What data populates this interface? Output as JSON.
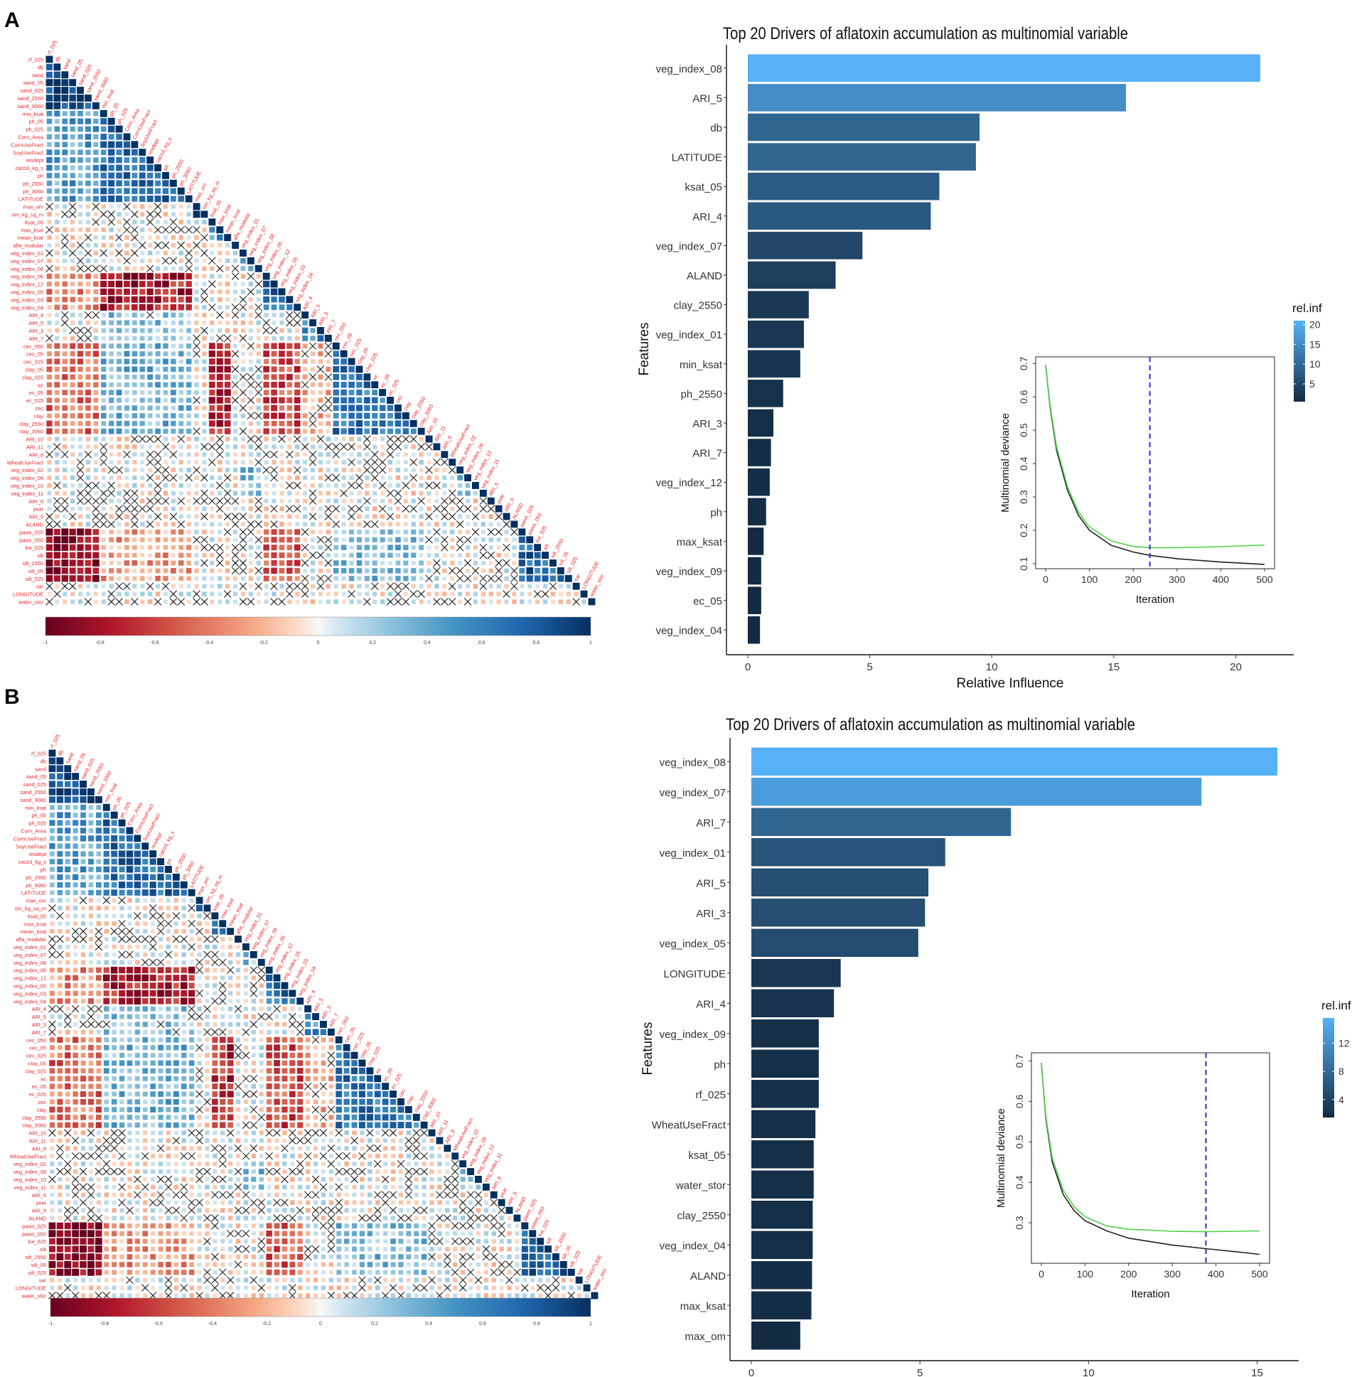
{
  "panels": [
    {
      "letter": "A",
      "corr_variables": [
        "rf_025",
        "db",
        "sand",
        "sand_05",
        "sand_025",
        "sand_2550",
        "sand_3060",
        "min_ksat",
        "ph_05",
        "ph_025",
        "Corn_Area",
        "CornUseFract",
        "SoyUseFract",
        "resdept",
        "caco3_kg_s",
        "ph",
        "ph_2550",
        "ph_3060",
        "LATITUDE",
        "max_om",
        "om_kg_sq_m",
        "ksat_05",
        "max_ksat",
        "mean_ksat",
        "afla_modular",
        "veg_index_01",
        "veg_index_07",
        "veg_index_08",
        "veg_index_06",
        "veg_index_12",
        "veg_index_05",
        "veg_index_03",
        "veg_index_04",
        "ARI_4",
        "ARI_5",
        "ARI_3",
        "ARI_7",
        "cec_050",
        "cec_05",
        "cec_025",
        "clay_05",
        "clay_025",
        "ec",
        "ec_05",
        "ec_025",
        "cec",
        "clay",
        "clay_2550",
        "clay_3060",
        "ARI_10",
        "ARI_11",
        "ARI_8",
        "WheatUseFract",
        "veg_index_02",
        "veg_index_09",
        "veg_index_10",
        "veg_index_11",
        "ARI_6",
        "year",
        "ARI_9",
        "ALAND",
        "paws_025",
        "paws_050",
        "kw_025",
        "silt",
        "silt_2550",
        "silt_05",
        "silt_025",
        "sar",
        "LONGITUDE",
        "water_stor"
      ],
      "colorbar_ticks": [
        "-1",
        "-0.8",
        "-0.6",
        "-0.4",
        "-0.2",
        "0",
        "0.2",
        "0.4",
        "0.6",
        "0.8",
        "1"
      ],
      "chart_data": {
        "type": "bar",
        "orientation": "horizontal",
        "title": "Top 20 Drivers of aflatoxin accumulation as multinomial variable",
        "xlabel": "Relative Influence",
        "ylabel": "Features",
        "xlim": [
          0,
          21.5
        ],
        "xticks": [
          "0",
          "5",
          "10",
          "15",
          "20"
        ],
        "categories": [
          "veg_index_08",
          "ARI_5",
          "db",
          "LATITUDE",
          "ksat_05",
          "ARI_4",
          "veg_index_07",
          "ALAND",
          "clay_2550",
          "veg_index_01",
          "min_ksat",
          "ph_2550",
          "ARI_3",
          "ARI_7",
          "veg_index_12",
          "ph",
          "max_ksat",
          "veg_index_09",
          "ec_05",
          "veg_index_04"
        ],
        "values": [
          21.0,
          15.5,
          9.5,
          9.35,
          7.85,
          7.5,
          4.7,
          3.6,
          2.5,
          2.3,
          2.15,
          1.45,
          1.05,
          0.95,
          0.9,
          0.75,
          0.65,
          0.55,
          0.55,
          0.5
        ],
        "legend": {
          "title": "rel.inf",
          "ticks": [
            "5",
            "10",
            "15",
            "20"
          ],
          "range": [
            0.5,
            21.0
          ],
          "position": "right"
        },
        "inset": {
          "type": "line",
          "xlabel": "Iteration",
          "ylabel": "Multinomial deviance",
          "xticks": [
            "0",
            "100",
            "200",
            "300",
            "400",
            "500"
          ],
          "yticks": [
            "0.1",
            "0.2",
            "0.3",
            "0.4",
            "0.5",
            "0.6",
            "0.7"
          ],
          "xlim": [
            0,
            500
          ],
          "ylim": [
            0.085,
            0.72
          ],
          "best_iteration": 238,
          "series": [
            {
              "name": "train",
              "color": "#222222",
              "x": [
                0,
                10,
                25,
                50,
                75,
                100,
                150,
                200,
                238,
                300,
                400,
                500
              ],
              "y": [
                0.695,
                0.57,
                0.44,
                0.32,
                0.245,
                0.2,
                0.155,
                0.135,
                0.125,
                0.115,
                0.105,
                0.098
              ]
            },
            {
              "name": "validation",
              "color": "#4cd34a",
              "x": [
                0,
                10,
                25,
                50,
                75,
                100,
                150,
                200,
                238,
                300,
                400,
                500
              ],
              "y": [
                0.695,
                0.575,
                0.45,
                0.33,
                0.255,
                0.21,
                0.168,
                0.152,
                0.148,
                0.148,
                0.151,
                0.156
              ]
            }
          ]
        }
      }
    },
    {
      "letter": "B",
      "corr_variables": [
        "rf_025",
        "db",
        "sand",
        "sand_05",
        "sand_025",
        "sand_2550",
        "sand_3060",
        "min_ksat",
        "ph_05",
        "ph_025",
        "Corn_Area",
        "CornUseFract",
        "SoyUseFract",
        "resdept",
        "caco3_kg_s",
        "ph",
        "ph_2550",
        "ph_3060",
        "LATITUDE",
        "max_om",
        "om_kg_sq_m",
        "ksat_05",
        "max_ksat",
        "mean_ksat",
        "afla_modular",
        "veg_index_01",
        "veg_index_07",
        "veg_index_08",
        "veg_index_06",
        "veg_index_12",
        "veg_index_05",
        "veg_index_03",
        "veg_index_04",
        "ARI_4",
        "ARI_5",
        "ARI_3",
        "ARI_7",
        "cec_050",
        "cec_05",
        "cec_025",
        "clay_05",
        "clay_025",
        "ec",
        "ec_05",
        "ec_025",
        "cec",
        "clay",
        "clay_2550",
        "clay_3060",
        "ARI_10",
        "ARI_11",
        "ARI_8",
        "WheatUseFract",
        "veg_index_02",
        "veg_index_09",
        "veg_index_10",
        "veg_index_11",
        "ARI_6",
        "year",
        "ARI_9",
        "ALAND",
        "paws_025",
        "paws_050",
        "kw_025",
        "silt",
        "silt_2550",
        "silt_05",
        "silt_025",
        "sar",
        "LONGITUDE",
        "water_stor"
      ],
      "colorbar_ticks": [
        "-1",
        "-0.8",
        "-0.6",
        "-0.4",
        "-0.2",
        "0",
        "0.2",
        "0.4",
        "0.6",
        "0.8",
        "1"
      ],
      "chart_data": {
        "type": "bar",
        "orientation": "horizontal",
        "title": "Top 20 Drivers of aflatoxin accumulation as multinomial variable",
        "xlabel": "Relative Influence",
        "ylabel": "Features",
        "xlim": [
          0,
          15.6
        ],
        "xticks": [
          "0",
          "5",
          "10",
          "15"
        ],
        "categories": [
          "veg_index_08",
          "veg_index_07",
          "ARI_7",
          "veg_index_01",
          "ARI_5",
          "ARI_3",
          "veg_index_05",
          "LONGITUDE",
          "ARI_4",
          "veg_index_09",
          "ph",
          "rf_025",
          "WheatUseFract",
          "ksat_05",
          "water_stor",
          "clay_2550",
          "veg_index_04",
          "ALAND",
          "max_ksat",
          "max_om"
        ],
        "values": [
          15.6,
          13.35,
          7.7,
          5.75,
          5.25,
          5.15,
          4.95,
          2.65,
          2.45,
          2.0,
          2.0,
          2.0,
          1.9,
          1.85,
          1.85,
          1.82,
          1.82,
          1.8,
          1.78,
          1.45
        ],
        "legend": {
          "title": "rel.inf",
          "ticks": [
            "4",
            "8",
            "12"
          ],
          "range": [
            1.45,
            15.6
          ],
          "position": "right"
        },
        "inset": {
          "type": "line",
          "xlabel": "Iteration",
          "ylabel": "Multinomial deviance",
          "xticks": [
            "0",
            "100",
            "200",
            "300",
            "400",
            "500"
          ],
          "yticks": [
            "0.3",
            "0.4",
            "0.5",
            "0.6",
            "0.7"
          ],
          "xlim": [
            0,
            500
          ],
          "ylim": [
            0.2,
            0.72
          ],
          "best_iteration": 377,
          "series": [
            {
              "name": "train",
              "color": "#222222",
              "x": [
                0,
                10,
                25,
                50,
                75,
                100,
                150,
                200,
                300,
                377,
                450,
                500
              ],
              "y": [
                0.695,
                0.56,
                0.45,
                0.37,
                0.33,
                0.305,
                0.28,
                0.262,
                0.245,
                0.236,
                0.228,
                0.222
              ]
            },
            {
              "name": "validation",
              "color": "#4cd34a",
              "x": [
                0,
                10,
                25,
                50,
                75,
                100,
                150,
                200,
                300,
                377,
                450,
                500
              ],
              "y": [
                0.695,
                0.565,
                0.46,
                0.38,
                0.34,
                0.315,
                0.292,
                0.284,
                0.279,
                0.278,
                0.279,
                0.28
              ]
            }
          ]
        }
      }
    }
  ]
}
